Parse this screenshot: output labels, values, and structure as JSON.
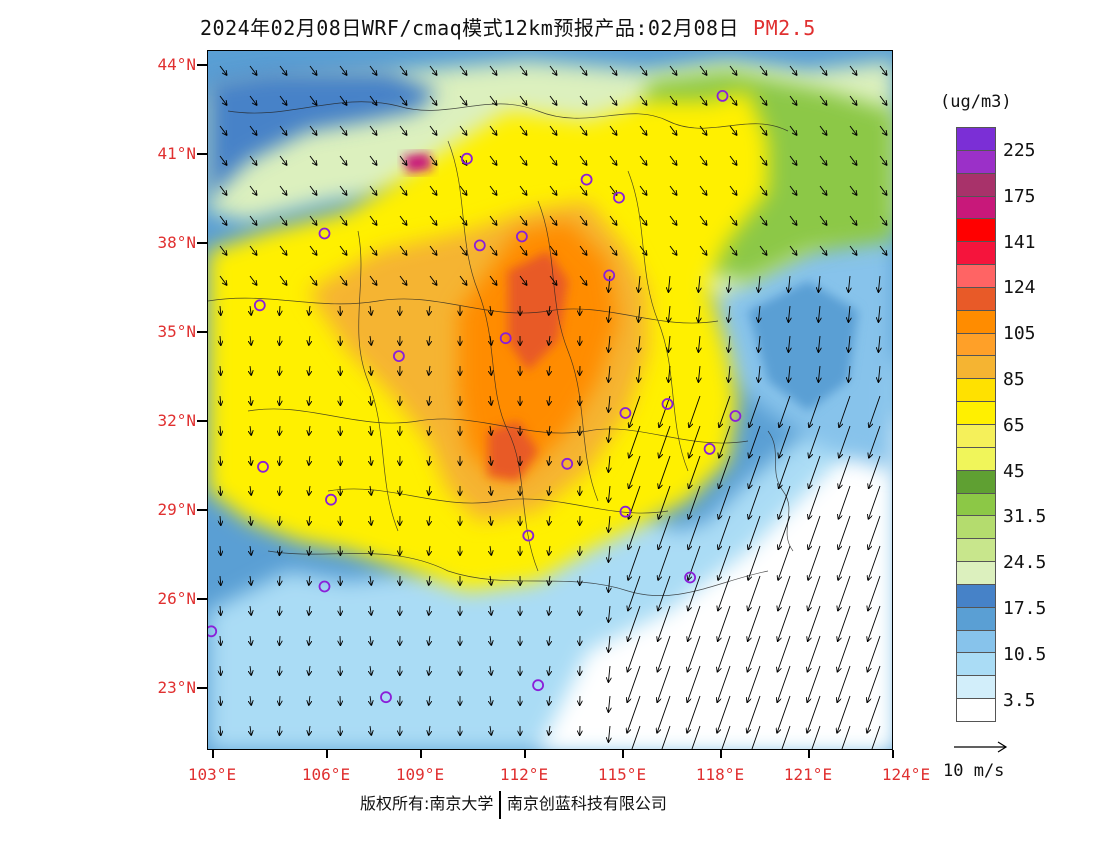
{
  "title": {
    "main": "2024年02月08日WRF/cmaq模式12km预报产品:02月08日",
    "pollutant": "PM2.5"
  },
  "axes": {
    "lat_labels": [
      "44°N",
      "41°N",
      "38°N",
      "35°N",
      "32°N",
      "29°N",
      "26°N",
      "23°N"
    ],
    "lon_labels": [
      "103°E",
      "106°E",
      "109°E",
      "112°E",
      "115°E",
      "118°E",
      "121°E",
      "124°E"
    ],
    "lat_values": [
      44,
      41,
      38,
      35,
      32,
      29,
      26,
      23
    ],
    "lon_values": [
      103,
      106,
      109,
      112,
      115,
      118,
      121,
      124
    ]
  },
  "colorbar": {
    "unit": "(ug/m3)",
    "labels": [
      "225",
      "175",
      "141",
      "124",
      "105",
      "85",
      "65",
      "45",
      "31.5",
      "24.5",
      "17.5",
      "10.5",
      "3.5"
    ],
    "colors": [
      "#7b2fd6",
      "#9b30c8",
      "#a8326a",
      "#c8187a",
      "#ff0000",
      "#f5143c",
      "#ff6464",
      "#e85a28",
      "#ff8c00",
      "#ffa028",
      "#f5b432",
      "#ffe100",
      "#fff000",
      "#f5f05a",
      "#f0f55a",
      "#5fa032",
      "#8cc846",
      "#b4dc6e",
      "#c8e68c",
      "#dcf0be",
      "#4682c8",
      "#5a9fd4",
      "#87c3eb",
      "#aadcf5",
      "#d2eefa",
      "#ffffff"
    ]
  },
  "wind_reference": {
    "label": "10 m/s"
  },
  "copyright": {
    "left": "版权所有:南京大学",
    "right": "南京创蓝科技有限公司"
  },
  "stations": [
    {
      "lon": 118.7,
      "lat": 42.9
    },
    {
      "lon": 110.8,
      "lat": 40.8
    },
    {
      "lon": 114.5,
      "lat": 40.1
    },
    {
      "lon": 115.5,
      "lat": 39.5
    },
    {
      "lon": 106.4,
      "lat": 38.3
    },
    {
      "lon": 112.5,
      "lat": 38.2
    },
    {
      "lon": 111.2,
      "lat": 37.9
    },
    {
      "lon": 115.2,
      "lat": 36.9
    },
    {
      "lon": 104.4,
      "lat": 35.9
    },
    {
      "lon": 112.0,
      "lat": 34.8
    },
    {
      "lon": 108.7,
      "lat": 34.2
    },
    {
      "lon": 117.0,
      "lat": 32.6
    },
    {
      "lon": 119.1,
      "lat": 32.2
    },
    {
      "lon": 115.7,
      "lat": 32.3
    },
    {
      "lon": 118.3,
      "lat": 31.1
    },
    {
      "lon": 104.5,
      "lat": 30.5
    },
    {
      "lon": 113.9,
      "lat": 30.6
    },
    {
      "lon": 106.6,
      "lat": 29.4
    },
    {
      "lon": 115.7,
      "lat": 29.0
    },
    {
      "lon": 112.7,
      "lat": 28.2
    },
    {
      "lon": 117.7,
      "lat": 26.8
    },
    {
      "lon": 106.4,
      "lat": 26.5
    },
    {
      "lon": 102.9,
      "lat": 25.0
    },
    {
      "lon": 113.0,
      "lat": 23.2
    },
    {
      "lon": 108.3,
      "lat": 22.8
    }
  ]
}
